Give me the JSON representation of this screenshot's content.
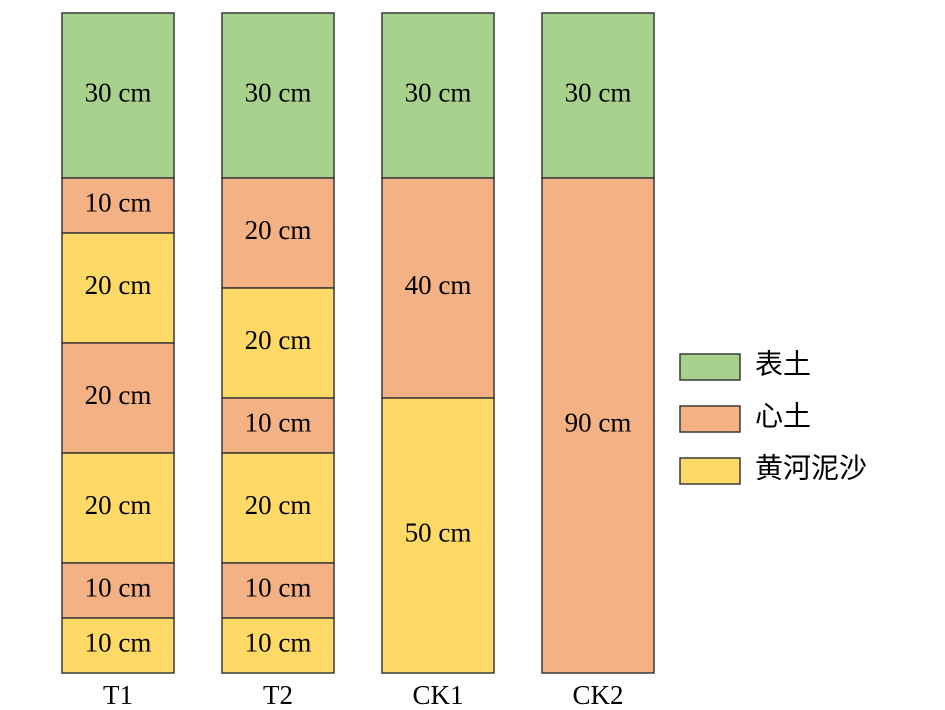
{
  "columns": [
    {
      "name": "T1",
      "layers": [
        {
          "label": "30 cm",
          "thickness": 30,
          "color": "#a9d18e"
        },
        {
          "label": "10 cm",
          "thickness": 10,
          "color": "#f4b183"
        },
        {
          "label": "20 cm",
          "thickness": 20,
          "color": "#ffd966"
        },
        {
          "label": "20 cm",
          "thickness": 20,
          "color": "#f4b183"
        },
        {
          "label": "20 cm",
          "thickness": 20,
          "color": "#ffd966"
        },
        {
          "label": "10 cm",
          "thickness": 10,
          "color": "#f4b183"
        },
        {
          "label": "10 cm",
          "thickness": 10,
          "color": "#ffd966"
        }
      ]
    },
    {
      "name": "T2",
      "layers": [
        {
          "label": "30 cm",
          "thickness": 30,
          "color": "#a9d18e"
        },
        {
          "label": "20 cm",
          "thickness": 20,
          "color": "#f4b183"
        },
        {
          "label": "20 cm",
          "thickness": 20,
          "color": "#ffd966"
        },
        {
          "label": "10 cm",
          "thickness": 10,
          "color": "#f4b183"
        },
        {
          "label": "20 cm",
          "thickness": 20,
          "color": "#ffd966"
        },
        {
          "label": "10 cm",
          "thickness": 10,
          "color": "#f4b183"
        },
        {
          "label": "10 cm",
          "thickness": 10,
          "color": "#ffd966"
        }
      ]
    },
    {
      "name": "CK1",
      "layers": [
        {
          "label": "30 cm",
          "thickness": 30,
          "color": "#a9d18e"
        },
        {
          "label": "40 cm",
          "thickness": 40,
          "color": "#f4b183"
        },
        {
          "label": "50 cm",
          "thickness": 50,
          "color": "#ffd966"
        }
      ]
    },
    {
      "name": "CK2",
      "layers": [
        {
          "label": "30 cm",
          "thickness": 30,
          "color": "#a9d18e"
        },
        {
          "label": "90 cm",
          "thickness": 90,
          "color": "#f4b183"
        }
      ]
    }
  ],
  "legend": [
    {
      "label": "表土",
      "color": "#a9d18e"
    },
    {
      "label": "心土",
      "color": "#f4b183"
    },
    {
      "label": "黄河泥沙",
      "color": "#ffd966"
    }
  ]
}
